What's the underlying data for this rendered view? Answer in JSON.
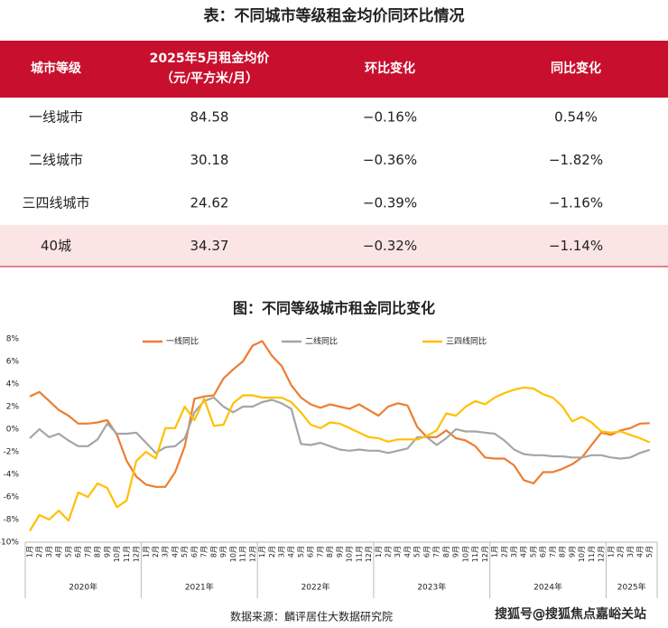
{
  "table": {
    "title": "表：不同城市等级租金均价同环比情况",
    "header": [
      "城市等级",
      [
        "2025年5月租金均价",
        "（元/平方米/月）"
      ],
      "环比变化",
      "同比变化"
    ],
    "rows": [
      [
        "一线城市",
        "84.58",
        "−0.16%",
        "0.54%"
      ],
      [
        "二线城市",
        "30.18",
        "−0.36%",
        "−1.82%"
      ],
      [
        "三四线城市",
        "24.62",
        "−0.39%",
        "−1.16%"
      ],
      [
        "40城",
        "34.37",
        "−0.32%",
        "−1.14%"
      ]
    ]
  },
  "chart_data": {
    "type": "line",
    "title": "图：不同等级城市租金同比变化",
    "category_groups": [
      {
        "label": "2020年",
        "categories": [
          "1月",
          "2月",
          "3月",
          "4月",
          "5月",
          "6月",
          "7月",
          "8月",
          "9月",
          "10月",
          "11月",
          "12月"
        ]
      },
      {
        "label": "2021年",
        "categories": [
          "1月",
          "2月",
          "3月",
          "4月",
          "5月",
          "6月",
          "7月",
          "8月",
          "9月",
          "10月",
          "11月",
          "12月"
        ]
      },
      {
        "label": "2022年",
        "categories": [
          "1月",
          "2月",
          "3月",
          "4月",
          "5月",
          "6月",
          "7月",
          "8月",
          "9月",
          "10月",
          "11月",
          "12月"
        ]
      },
      {
        "label": "2023年",
        "categories": [
          "1月",
          "2月",
          "3月",
          "4月",
          "5月",
          "6月",
          "7月",
          "8月",
          "9月",
          "10月",
          "11月",
          "12月"
        ]
      },
      {
        "label": "2024年",
        "categories": [
          "1月",
          "2月",
          "3月",
          "4月",
          "5月",
          "6月",
          "7月",
          "8月",
          "9月",
          "10月",
          "11月",
          "12月"
        ]
      },
      {
        "label": "2025年",
        "categories": [
          "1月",
          "2月",
          "3月",
          "4月",
          "5月"
        ]
      }
    ],
    "series": [
      {
        "name": "一线同比",
        "color": "#ed7d31",
        "values": [
          2.9,
          3.3,
          2.5,
          1.7,
          1.2,
          0.5,
          0.5,
          0.6,
          0.8,
          -0.5,
          -2.8,
          -4.2,
          -4.9,
          -5.1,
          -5.1,
          -3.8,
          -1.5,
          2.7,
          2.9,
          3.0,
          4.5,
          5.3,
          6.0,
          7.4,
          7.8,
          6.5,
          5.6,
          3.9,
          2.8,
          2.2,
          1.9,
          2.2,
          2.0,
          1.8,
          2.2,
          1.7,
          1.2,
          2.0,
          2.3,
          2.1,
          0.2,
          -0.7,
          -0.7,
          -0.1,
          -0.8,
          -1.0,
          -1.5,
          -2.5,
          -2.6,
          -2.6,
          -3.2,
          -4.5,
          -4.8,
          -3.8,
          -3.8,
          -3.5,
          -3.1,
          -2.5,
          -1.4,
          -0.3,
          -0.5,
          -0.1,
          0.1,
          0.5,
          0.54
        ]
      },
      {
        "name": "二线同比",
        "color": "#a5a5a5",
        "values": [
          -0.8,
          0.0,
          -0.7,
          -0.4,
          -1.0,
          -1.5,
          -1.5,
          -0.9,
          0.5,
          -0.4,
          -0.4,
          -0.3,
          -1.2,
          -2.1,
          -1.6,
          -1.5,
          -0.8,
          1.5,
          2.5,
          2.8,
          2.0,
          1.5,
          2.0,
          2.0,
          2.4,
          2.6,
          2.3,
          1.8,
          -1.3,
          -1.4,
          -1.2,
          -1.5,
          -1.8,
          -1.9,
          -1.8,
          -1.9,
          -1.9,
          -2.1,
          -1.9,
          -1.7,
          -0.7,
          -0.7,
          -1.4,
          -0.8,
          0.0,
          -0.2,
          -0.2,
          -0.3,
          -0.4,
          -1.0,
          -1.8,
          -2.2,
          -2.3,
          -2.3,
          -2.4,
          -2.4,
          -2.5,
          -2.5,
          -2.3,
          -2.3,
          -2.5,
          -2.6,
          -2.5,
          -2.1,
          -1.82
        ]
      },
      {
        "name": "三四线同比",
        "color": "#ffc000",
        "values": [
          -9.0,
          -7.6,
          -8.0,
          -7.2,
          -8.1,
          -5.6,
          -6.0,
          -4.8,
          -5.2,
          -6.9,
          -6.3,
          -2.8,
          -2.0,
          -2.6,
          0.1,
          0.1,
          2.0,
          0.8,
          2.7,
          0.3,
          0.4,
          2.3,
          3.0,
          3.0,
          2.8,
          2.8,
          2.8,
          2.4,
          1.5,
          0.4,
          0.1,
          0.6,
          0.5,
          0.1,
          -0.3,
          -0.7,
          -0.8,
          -1.1,
          -0.9,
          -0.9,
          -0.9,
          -0.6,
          -0.1,
          1.4,
          1.2,
          2.0,
          2.5,
          2.2,
          2.8,
          3.2,
          3.5,
          3.7,
          3.6,
          3.1,
          2.8,
          2.0,
          0.7,
          1.1,
          0.6,
          -0.2,
          -0.3,
          -0.2,
          -0.5,
          -0.8,
          -1.16
        ]
      }
    ],
    "ylim": [
      -10,
      8
    ],
    "yticks": [
      {
        "value": 8,
        "label": "8%"
      },
      {
        "value": 6,
        "label": "6%"
      },
      {
        "value": 4,
        "label": "4%"
      },
      {
        "value": 2,
        "label": "2%"
      },
      {
        "value": 0,
        "label": "0%"
      },
      {
        "value": -2,
        "label": "-2%"
      },
      {
        "value": -4,
        "label": "-4%"
      },
      {
        "value": -6,
        "label": "-6%"
      },
      {
        "value": -8,
        "label": "-8%"
      },
      {
        "value": -10,
        "label": "-10%"
      }
    ],
    "grid": false,
    "legend": "top",
    "source": "数据来源：麟评居住大数据研究院"
  },
  "watermark": "搜狐号@搜狐焦点嘉峪关站"
}
